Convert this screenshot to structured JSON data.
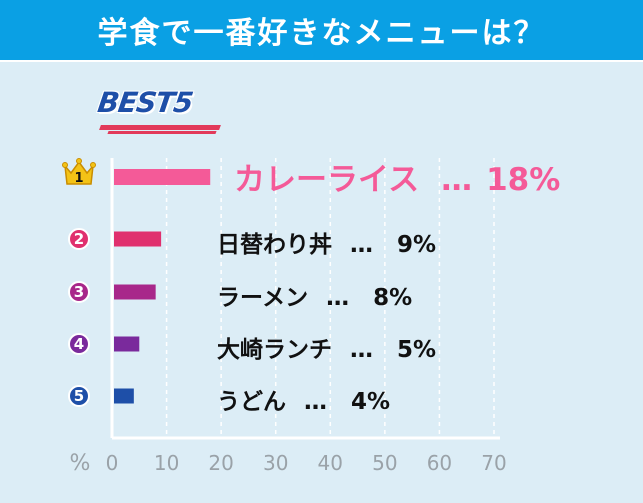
{
  "header": {
    "title": "学食で一番好きなメニューは？"
  },
  "best_badge": "BEST5",
  "chart_data": {
    "type": "bar",
    "orientation": "horizontal",
    "categories": [
      "カレーライス",
      "日替わり丼",
      "ラーメン",
      "大崎ランチ",
      "うどん"
    ],
    "values": [
      18,
      9,
      8,
      5,
      4
    ],
    "value_labels": [
      "18%",
      "9%",
      "8%",
      "5%",
      "4%"
    ],
    "ranks": [
      "1",
      "2",
      "3",
      "4",
      "5"
    ],
    "separator": "…",
    "colors": [
      "#f45a98",
      "#e0306e",
      "#a8278a",
      "#7a2a9c",
      "#1e4fa8"
    ],
    "axis_unit_label": "%",
    "xlim": [
      0,
      70
    ],
    "xticks": [
      "0",
      "10",
      "20",
      "30",
      "40",
      "50",
      "60",
      "70"
    ],
    "grid": "dashed-vertical"
  }
}
